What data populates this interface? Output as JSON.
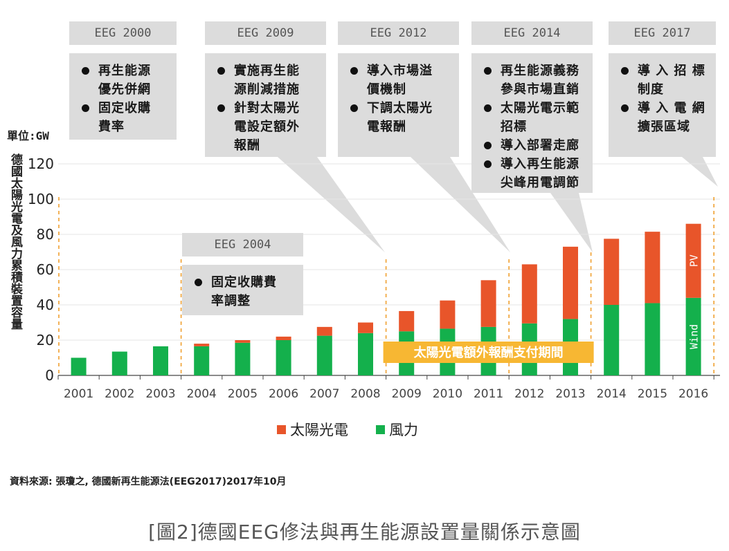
{
  "chart_data": {
    "type": "bar",
    "stacked": true,
    "categories": [
      "2001",
      "2002",
      "2003",
      "2004",
      "2005",
      "2006",
      "2007",
      "2008",
      "2009",
      "2010",
      "2011",
      "2012",
      "2013",
      "2014",
      "2015",
      "2016"
    ],
    "series": [
      {
        "name": "風力",
        "color": "#14b04c",
        "values": [
          10,
          13.5,
          16.5,
          16.5,
          18.5,
          20,
          22.5,
          24,
          25,
          26.5,
          27.5,
          29.5,
          32,
          40,
          41,
          44
        ]
      },
      {
        "name": "太陽光電",
        "color": "#e8552a",
        "values": [
          0,
          0,
          0,
          1.5,
          1.5,
          2,
          5,
          6,
          11.5,
          16,
          26.5,
          33.5,
          41,
          37.5,
          40.5,
          42
        ]
      }
    ],
    "ylim": [
      0,
      120
    ],
    "yticks": [
      0,
      20,
      40,
      60,
      80,
      100,
      120
    ],
    "unit_label": "單位:GW",
    "ylabel": "德國太陽光電及風力累積裝置容量",
    "inbar_labels": {
      "pv": "PV",
      "wind": "Wind"
    },
    "highlight_label": "太陽光電額外報酬支付期間",
    "legend_position": "bottom-center",
    "grid": true
  },
  "eras": [
    {
      "tag": "EEG 2000",
      "items": [
        "再生能源\n優先併網",
        "固定收購\n費率"
      ]
    },
    {
      "tag": "EEG 2004",
      "items": [
        "固定收購費\n率調整"
      ]
    },
    {
      "tag": "EEG 2009",
      "items": [
        "實施再生能\n源削減措施",
        "針對太陽光\n電設定額外\n報酬"
      ]
    },
    {
      "tag": "EEG 2012",
      "items": [
        "導入市場溢\n價機制",
        "下調太陽光\n電報酬"
      ]
    },
    {
      "tag": "EEG 2014",
      "items": [
        "再生能源義務\n參與市場直銷",
        "太陽光電示範\n招標",
        "導入部署走廊",
        "導入再生能源\n尖峰用電調節"
      ]
    },
    {
      "tag": "EEG 2017",
      "items": [
        "導 入 招 標\n制度",
        "導 入 電 網\n擴張區域"
      ]
    }
  ],
  "legend": {
    "pv": "太陽光電",
    "wind": "風力"
  },
  "source": "資料來源: 張瓊之, 德國新再生能源法(EEG2017)2017年10月",
  "caption": "[圖2]德國EEG修法與再生能源設置量關係示意圖",
  "colors": {
    "pv": "#e8552a",
    "wind": "#14b04c",
    "highlight": "#f7b733",
    "divider": "#f0a030",
    "box": "#dcdcdc"
  }
}
